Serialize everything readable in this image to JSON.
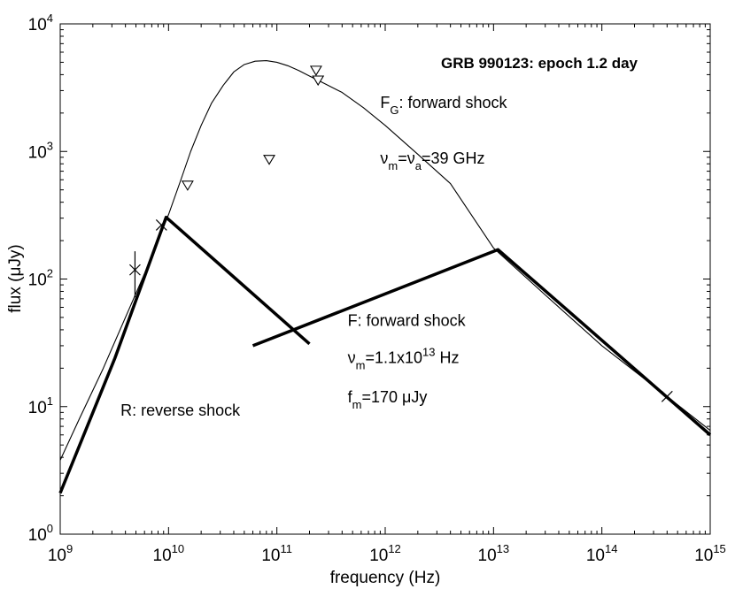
{
  "chart_data": {
    "type": "line",
    "title": "GRB 990123: epoch 1.2 day",
    "xlabel": "frequency (Hz)",
    "ylabel": "flux (μJy)",
    "xscale": "log",
    "yscale": "log",
    "xlim": [
      1000000000.0,
      1000000000000000.0
    ],
    "ylim": [
      1,
      10000
    ],
    "grid": false,
    "x_ticks": [
      {
        "base": "10",
        "exp": "9",
        "value": 1000000000.0
      },
      {
        "base": "10",
        "exp": "10",
        "value": 10000000000.0
      },
      {
        "base": "10",
        "exp": "11",
        "value": 100000000000.0
      },
      {
        "base": "10",
        "exp": "12",
        "value": 1000000000000.0
      },
      {
        "base": "10",
        "exp": "13",
        "value": 10000000000000.0
      },
      {
        "base": "10",
        "exp": "14",
        "value": 100000000000000.0
      },
      {
        "base": "10",
        "exp": "15",
        "value": 1000000000000000.0
      }
    ],
    "y_ticks": [
      {
        "base": "10",
        "exp": "0",
        "value": 1
      },
      {
        "base": "10",
        "exp": "1",
        "value": 10
      },
      {
        "base": "10",
        "exp": "2",
        "value": 100
      },
      {
        "base": "10",
        "exp": "3",
        "value": 1000
      },
      {
        "base": "10",
        "exp": "4",
        "value": 10000
      }
    ],
    "series": [
      {
        "name": "F_G: forward shock (thin)",
        "style": "thin",
        "x": [
          1000000000.0,
          1500000000.0,
          2500000000.0,
          4000000000.0,
          6000000000.0,
          8000000000.0,
          10000000000.0,
          13000000000.0,
          16000000000.0,
          20000000000.0,
          25000000000.0,
          32000000000.0,
          40000000000.0,
          50000000000.0,
          63000000000.0,
          80000000000.0,
          100000000000.0,
          126000000000.0,
          160000000000.0,
          200000000000.0,
          250000000000.0,
          400000000000.0,
          630000000000.0,
          1000000000000.0,
          2000000000000.0,
          4000000000000.0,
          10000000000000.0,
          30000000000000.0,
          100000000000000.0,
          400000000000000.0,
          1000000000000000.0
        ],
        "y": [
          3.8,
          8,
          20,
          50,
          110,
          200,
          320,
          600,
          1000,
          1600,
          2400,
          3300,
          4200,
          4800,
          5100,
          5150,
          5000,
          4700,
          4300,
          3900,
          3550,
          2900,
          2200,
          1600,
          950,
          560,
          175,
          75,
          30,
          12,
          6.5
        ]
      },
      {
        "name": "R: reverse shock",
        "style": "thick",
        "x": [
          1000000000.0,
          3200000000.0,
          9500000000.0,
          200000000000.0
        ],
        "y": [
          2.1,
          24,
          305,
          31
        ]
      },
      {
        "name": "F: forward shock",
        "style": "thick",
        "x": [
          60000000000.0,
          11000000000000.0,
          1000000000000000.0
        ],
        "y": [
          30,
          170,
          6
        ]
      }
    ],
    "points": [
      {
        "x": 4900000000.0,
        "y": 118,
        "marker": "x",
        "err_low": 72,
        "err_high": 165
      },
      {
        "x": 8600000000.0,
        "y": 265,
        "marker": "x"
      },
      {
        "x": 400000000000000.0,
        "y": 12,
        "marker": "x"
      },
      {
        "x": 15000000000.0,
        "y": 540,
        "marker": "triangle-down"
      },
      {
        "x": 85000000000.0,
        "y": 860,
        "marker": "triangle-down"
      },
      {
        "x": 230000000000.0,
        "y": 4300,
        "marker": "triangle-down"
      },
      {
        "x": 240000000000.0,
        "y": 3600,
        "marker": "triangle-down"
      }
    ],
    "annotations": {
      "fg_label": {
        "main": "F",
        "sub": "G",
        "rest": ": forward shock",
        "x": 900000000000.0,
        "y": 2200
      },
      "nu_label": {
        "nu1": "ν",
        "sub1": "m",
        "eq1": "=",
        "nu2": "ν",
        "sub2": "a",
        "rest": "=39 GHz",
        "x": 900000000000.0,
        "y": 800
      },
      "f_label": {
        "text": "F: forward shock",
        "x": 450000000000.0,
        "y": 43
      },
      "num_label": {
        "nu": "ν",
        "sub": "m",
        "mid": "=1.1x10",
        "sup": "13",
        "rest": " Hz",
        "x": 450000000000.0,
        "y": 22
      },
      "fm_label": {
        "f": "f",
        "sub": "m",
        "rest": "=170 μJy",
        "x": 450000000000.0,
        "y": 10.8
      },
      "r_label": {
        "text": "R: reverse shock",
        "x": 3600000000.0,
        "y": 8.5
      }
    }
  }
}
